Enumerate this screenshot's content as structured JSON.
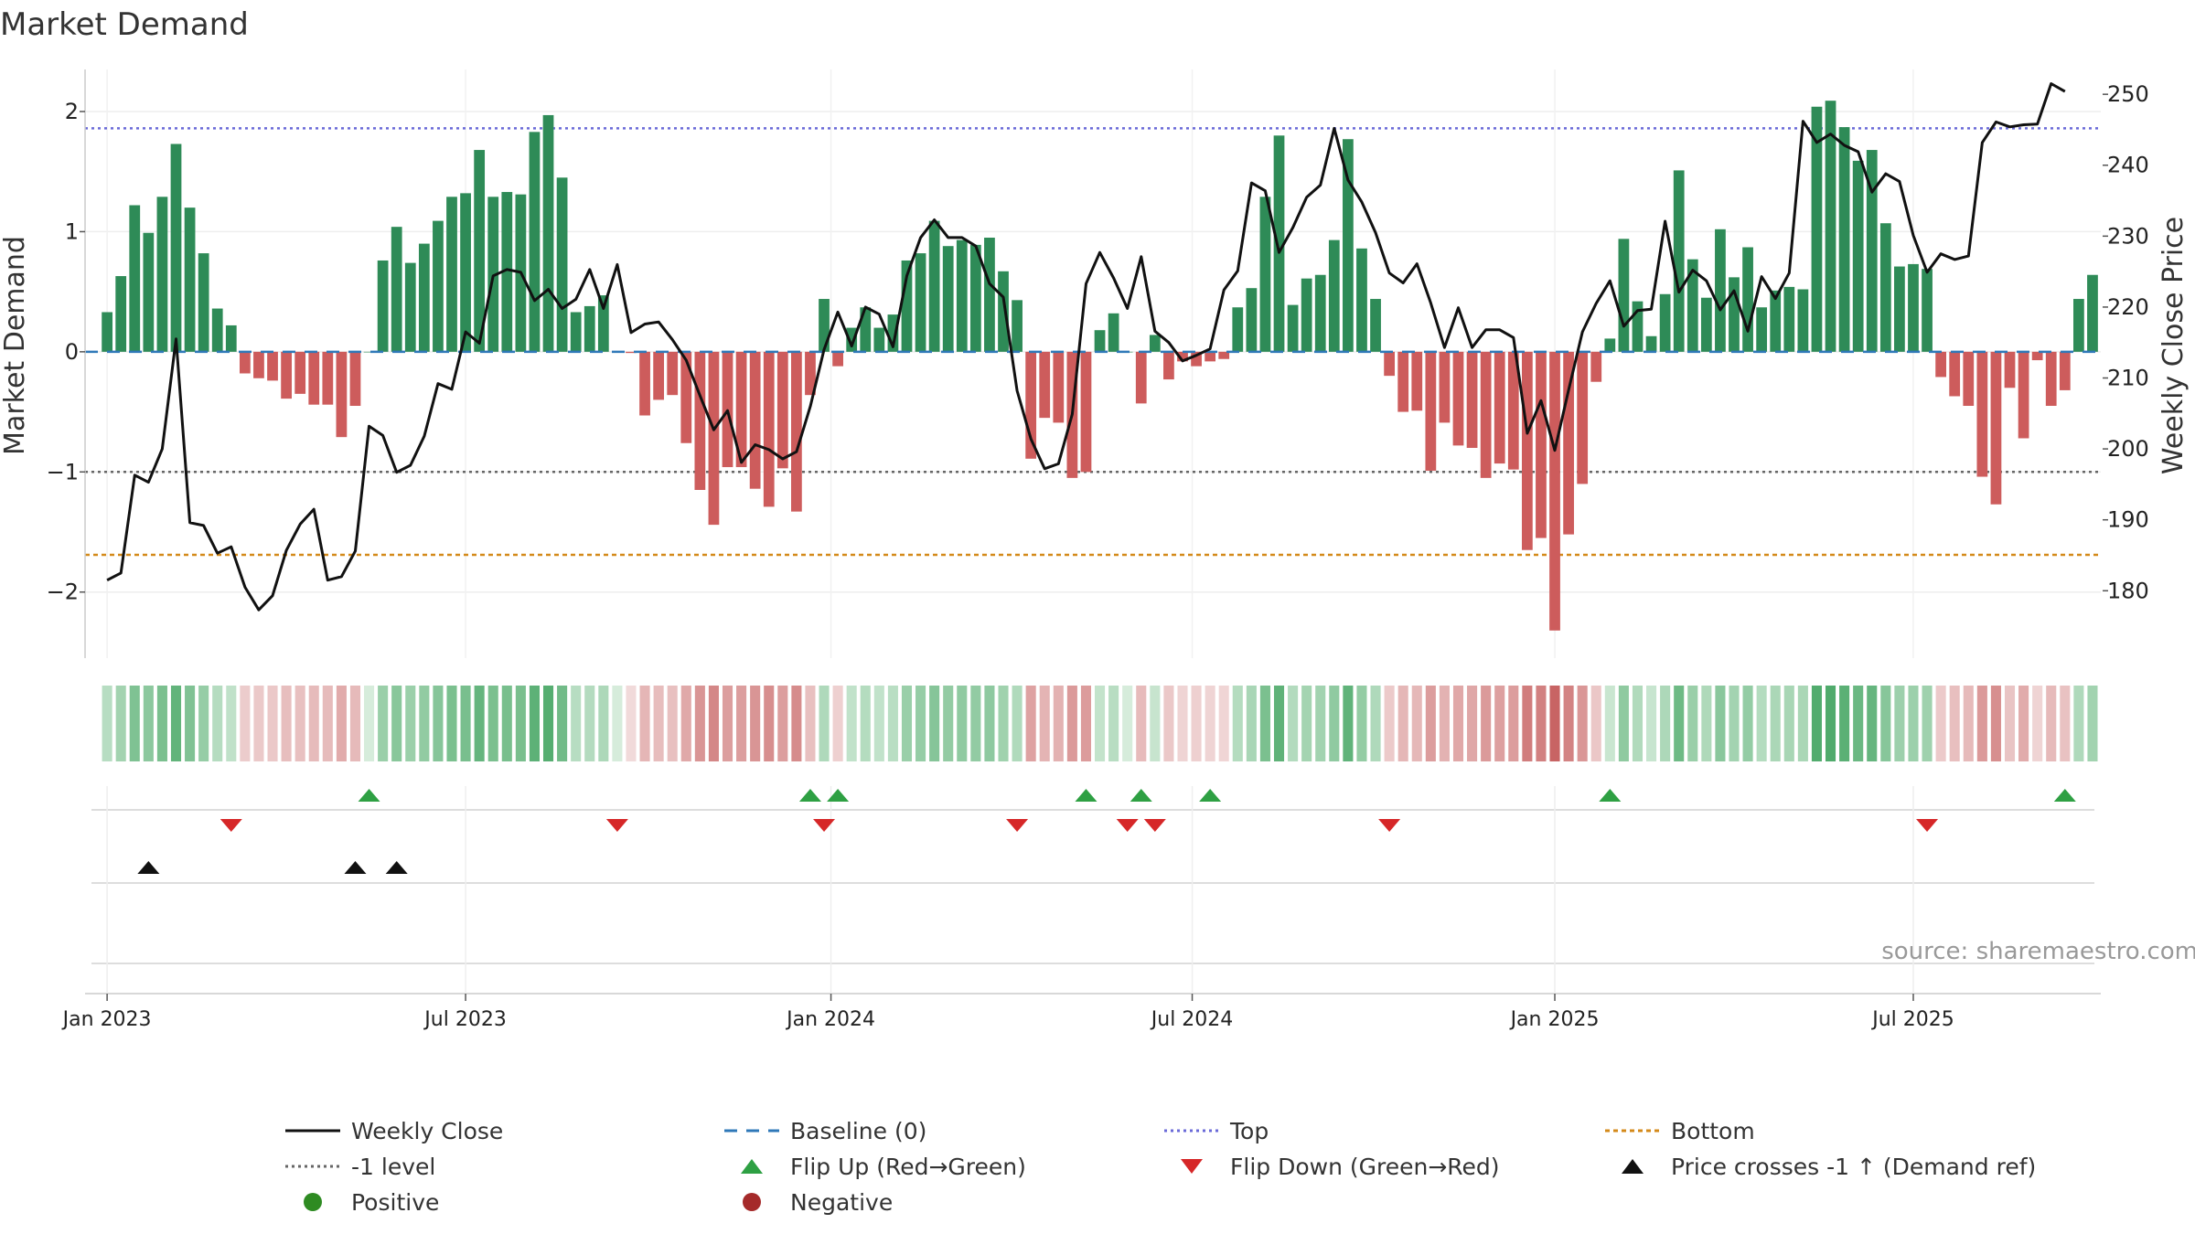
{
  "chart_data": {
    "type": "bar",
    "title": "Market Demand",
    "ylabel_left": "Market Demand",
    "ylabel_right": "Weekly Close Price",
    "source": "source: sharemaestro.com",
    "ylim_left": [
      -2.55,
      2.35
    ],
    "ylim_right": [
      170.5,
      253.5
    ],
    "yticks_left": [
      {
        "v": 2,
        "label": "2"
      },
      {
        "v": 1,
        "label": "1"
      },
      {
        "v": 0,
        "label": "0"
      },
      {
        "v": -1,
        "label": "−1"
      },
      {
        "v": -2,
        "label": "−2"
      }
    ],
    "yticks_right": [
      {
        "v": 250,
        "label": "250"
      },
      {
        "v": 240,
        "label": "240"
      },
      {
        "v": 230,
        "label": "230"
      },
      {
        "v": 220,
        "label": "220"
      },
      {
        "v": 210,
        "label": "210"
      },
      {
        "v": 200,
        "label": "200"
      },
      {
        "v": 190,
        "label": "190"
      },
      {
        "v": 180,
        "label": "180"
      }
    ],
    "x_start_week": 0,
    "x_week_range": [
      -1.6,
      144.6
    ],
    "xticks": [
      {
        "w": 0,
        "label": "Jan 2023"
      },
      {
        "w": 26,
        "label": "Jul 2023"
      },
      {
        "w": 52.5,
        "label": "Jan 2024"
      },
      {
        "w": 78.7,
        "label": "Jul 2024"
      },
      {
        "w": 105,
        "label": "Jan 2025"
      },
      {
        "w": 131,
        "label": "Jul 2025"
      }
    ],
    "reference_lines": [
      {
        "name": "Top",
        "value": 1.86,
        "color": "#6a6ad8",
        "dash": "3,4"
      },
      {
        "name": "-1 level",
        "value": -1.0,
        "color": "#666666",
        "dash": "3,4"
      },
      {
        "name": "Bottom",
        "value": -1.69,
        "color": "#d48a1a",
        "dash": "5,4"
      },
      {
        "name": "Baseline (0)",
        "value": 0,
        "color": "#2f78b8",
        "dash": "14,10"
      }
    ],
    "colors": {
      "positive": "#2e8b57",
      "negative": "#cd5c5c",
      "price_line": "#111111",
      "flip_up": "#2ea043",
      "flip_down": "#d62728",
      "cross": "#111111",
      "positive_dot": "#2e8b22",
      "negative_dot": "#a52a2a"
    },
    "demand": [
      0.33,
      0.63,
      1.22,
      0.99,
      1.29,
      1.73,
      1.2,
      0.82,
      0.36,
      0.22,
      -0.18,
      -0.22,
      -0.24,
      -0.39,
      -0.35,
      -0.44,
      -0.44,
      -0.71,
      -0.45,
      0.0,
      0.76,
      1.04,
      0.74,
      0.9,
      1.09,
      1.29,
      1.32,
      1.68,
      1.29,
      1.33,
      1.31,
      1.83,
      1.97,
      1.45,
      0.33,
      0.38,
      0.47,
      0.0,
      -0.01,
      -0.53,
      -0.4,
      -0.36,
      -0.76,
      -1.15,
      -1.44,
      -0.96,
      -0.96,
      -1.14,
      -1.29,
      -0.97,
      -1.33,
      -0.36,
      0.44,
      -0.12,
      0.2,
      0.37,
      0.2,
      0.31,
      0.76,
      0.82,
      1.09,
      0.88,
      0.93,
      0.89,
      0.95,
      0.67,
      0.43,
      -0.89,
      -0.55,
      -0.59,
      -1.05,
      -1.0,
      0.18,
      0.32,
      0.0,
      -0.43,
      0.14,
      -0.23,
      -0.08,
      -0.12,
      -0.08,
      -0.06,
      0.37,
      0.53,
      1.29,
      1.8,
      0.39,
      0.61,
      0.64,
      0.93,
      1.77,
      0.86,
      0.44,
      -0.2,
      -0.5,
      -0.49,
      -0.99,
      -0.59,
      -0.78,
      -0.8,
      -1.05,
      -0.93,
      -0.98,
      -1.65,
      -1.55,
      -2.32,
      -1.52,
      -1.1,
      -0.25,
      0.11,
      0.94,
      0.42,
      0.13,
      0.48,
      1.51,
      0.77,
      0.45,
      1.02,
      0.62,
      0.87,
      0.37,
      0.51,
      0.54,
      0.52,
      2.04,
      2.09,
      1.87,
      1.59,
      1.68,
      1.07,
      0.71,
      0.73,
      0.69,
      -0.21,
      -0.37,
      -0.45,
      -1.04,
      -1.27,
      -0.3,
      -0.72,
      -0.07,
      -0.45,
      -0.32,
      0.44,
      0.64
    ],
    "price": [
      181.5,
      182.5,
      196.3,
      195.3,
      200,
      215.5,
      189.6,
      189.2,
      185.3,
      186.2,
      180.5,
      177.3,
      179.3,
      185.7,
      189.4,
      191.5,
      181.5,
      182,
      185.6,
      203.2,
      201.9,
      196.7,
      197.7,
      201.8,
      209.2,
      208.4,
      216.5,
      214.9,
      224.4,
      225.3,
      224.9,
      220.9,
      222.5,
      219.8,
      221.1,
      225.3,
      219.8,
      226,
      216.4,
      217.6,
      217.9,
      215.4,
      212.5,
      207.5,
      202.7,
      205.4,
      198.1,
      200.6,
      199.9,
      198.6,
      199.6,
      206,
      214,
      219.3,
      214.5,
      220,
      219,
      214.4,
      224.4,
      229.8,
      232.3,
      229.8,
      229.8,
      228.6,
      223.3,
      221.4,
      208.2,
      201.4,
      197.2,
      197.9,
      204.9,
      223.3,
      227.7,
      224.1,
      219.8,
      227.1,
      216.6,
      215,
      212.4,
      213.2,
      214.1,
      222.4,
      225.1,
      237.5,
      236.4,
      227.7,
      231.2,
      235.5,
      237.2,
      245.2,
      237.9,
      234.8,
      230.5,
      224.8,
      223.4,
      226.1,
      220.6,
      214.3,
      219.9,
      214.3,
      216.8,
      216.8,
      215.7,
      202.2,
      206.8,
      199.8,
      208.3,
      216.5,
      220.5,
      223.7,
      217.3,
      219.5,
      219.7,
      232.1,
      222.1,
      225.2,
      223.7,
      219.6,
      222.3,
      216.6,
      224.3,
      221.2,
      224.8,
      246.2,
      243.2,
      244.4,
      242.8,
      241.9,
      236.2,
      238.8,
      237.7,
      230.1,
      224.9,
      227.5,
      226.7,
      227.2,
      243.2,
      246.1,
      245.4,
      245.7,
      245.8,
      251.5,
      250.4
    ],
    "flip_up_weeks": [
      19,
      51,
      53,
      71,
      75,
      80,
      109,
      142
    ],
    "flip_down_weeks": [
      9,
      37,
      52,
      66,
      74,
      76,
      93,
      132
    ],
    "price_cross_weeks": [
      3,
      18,
      21
    ],
    "legend": [
      {
        "key": "close",
        "label": "Weekly Close"
      },
      {
        "key": "baseline",
        "label": "Baseline (0)"
      },
      {
        "key": "top",
        "label": "Top"
      },
      {
        "key": "bottom",
        "label": "Bottom"
      },
      {
        "key": "minus1",
        "label": "-1 level"
      },
      {
        "key": "flipup",
        "label": "Flip Up (Red→Green)"
      },
      {
        "key": "flipdown",
        "label": "Flip Down (Green→Red)"
      },
      {
        "key": "cross",
        "label": "Price crosses -1 ↑ (Demand ref)"
      },
      {
        "key": "positive",
        "label": "Positive"
      },
      {
        "key": "negative",
        "label": "Negative"
      }
    ]
  }
}
